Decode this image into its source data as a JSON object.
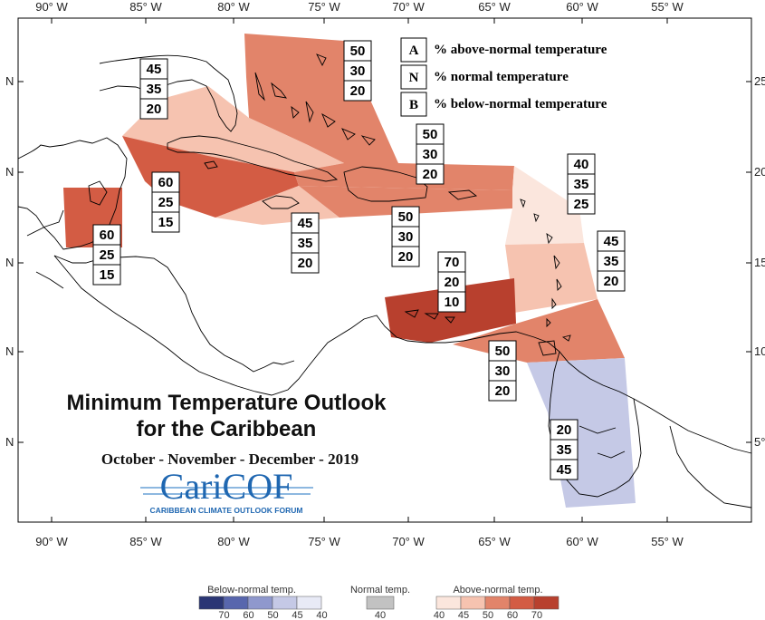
{
  "title": {
    "line1": "Minimum Temperature Outlook",
    "line2": "for the Caribbean",
    "period": "October - November - December - 2019"
  },
  "logo": {
    "name": "CariCOF",
    "tagline": "CARIBBEAN CLIMATE OUTLOOK FORUM"
  },
  "axes": {
    "lon_labels": [
      "90° W",
      "85° W",
      "80° W",
      "75° W",
      "70° W",
      "65° W",
      "60° W",
      "55° W"
    ],
    "lat_labels_left": [
      "N",
      "N",
      "N",
      "N",
      "N"
    ],
    "lat_labels_right": [
      "25",
      "20",
      "15",
      "10",
      "5°"
    ]
  },
  "map_key": [
    {
      "key": "A",
      "text": "% above-normal temperature"
    },
    {
      "key": "N",
      "text": "% normal temperature"
    },
    {
      "key": "B",
      "text": "% below-normal temperature"
    }
  ],
  "regions": [
    {
      "id": "bahamas",
      "above": "50",
      "normal": "30",
      "below": "20",
      "color": "#e2846a"
    },
    {
      "id": "cuba-north",
      "above": "45",
      "normal": "35",
      "below": "20",
      "color": "#f6c3b0"
    },
    {
      "id": "cuba-south",
      "above": "60",
      "normal": "25",
      "below": "15",
      "color": "#d35c44"
    },
    {
      "id": "belize",
      "above": "60",
      "normal": "25",
      "below": "15",
      "color": "#d35c44"
    },
    {
      "id": "jamaica",
      "above": "45",
      "normal": "35",
      "below": "20",
      "color": "#f6c3b0"
    },
    {
      "id": "hispaniola-north",
      "above": "50",
      "normal": "30",
      "below": "20",
      "color": "#e2846a"
    },
    {
      "id": "hispaniola-south",
      "above": "50",
      "normal": "30",
      "below": "20",
      "color": "#e2846a"
    },
    {
      "id": "leeward",
      "above": "40",
      "normal": "35",
      "below": "25",
      "color": "#fbe6dd"
    },
    {
      "id": "windward",
      "above": "45",
      "normal": "35",
      "below": "20",
      "color": "#f6c3b0"
    },
    {
      "id": "abc-islands",
      "above": "70",
      "normal": "20",
      "below": "10",
      "color": "#b8402e"
    },
    {
      "id": "trinidad",
      "above": "50",
      "normal": "30",
      "below": "20",
      "color": "#e2846a"
    },
    {
      "id": "guianas",
      "above": "20",
      "normal": "35",
      "below": "45",
      "color": "#c5c9e6"
    }
  ],
  "scale": {
    "below_label": "Below-normal temp.",
    "normal_label": "Normal temp.",
    "above_label": "Above-normal temp.",
    "below_ticks": [
      "70",
      "60",
      "50",
      "45",
      "40"
    ],
    "normal_ticks": [
      "40"
    ],
    "above_ticks": [
      "40",
      "45",
      "50",
      "60",
      "70"
    ],
    "below_colors": [
      "#2b3675",
      "#5866ad",
      "#8f98cd",
      "#c5c9e6",
      "#e8eaf6"
    ],
    "normal_color": "#c2c2c2",
    "above_colors": [
      "#fbe6dd",
      "#f6c3b0",
      "#e2846a",
      "#d35c44",
      "#b8402e"
    ]
  }
}
